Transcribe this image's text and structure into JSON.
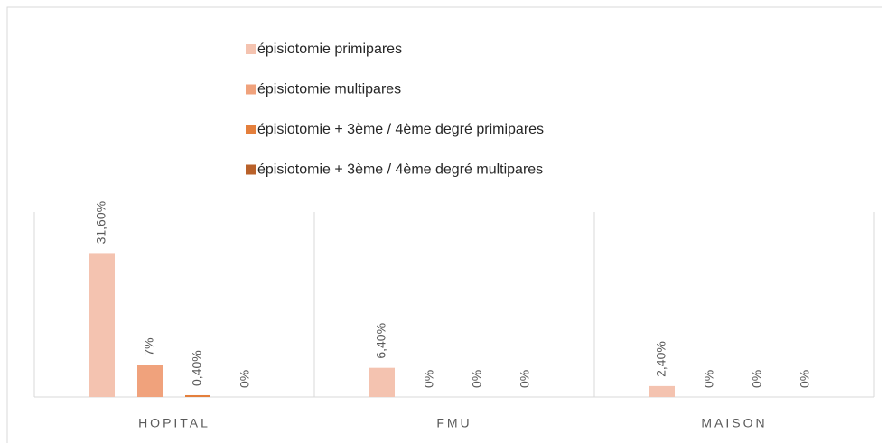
{
  "chart_data": {
    "type": "bar",
    "categories": [
      "HOPITAL",
      "FMU",
      "MAISON"
    ],
    "series": [
      {
        "name": "épisiotomie primipares",
        "color": "#f4c3b0",
        "values": [
          31.6,
          6.4,
          2.4
        ],
        "value_labels": [
          "31,60%",
          "6,40%",
          "2,40%"
        ]
      },
      {
        "name": "épisiotomie multipares",
        "color": "#f0a27c",
        "values": [
          7,
          0,
          0
        ],
        "value_labels": [
          "7%",
          "0%",
          "0%"
        ]
      },
      {
        "name": "épisiotomie + 3ème / 4ème degré primipares",
        "color": "#e47f3c",
        "values": [
          0.4,
          0,
          0
        ],
        "value_labels": [
          "0,40%",
          "0%",
          "0%"
        ]
      },
      {
        "name": "épisiotomie + 3ème / 4ème degré multipares",
        "color": "#b9612a",
        "values": [
          0,
          0,
          0
        ],
        "value_labels": [
          "0%",
          "0%",
          "0%"
        ]
      }
    ],
    "ylim": [
      0,
      40
    ]
  }
}
